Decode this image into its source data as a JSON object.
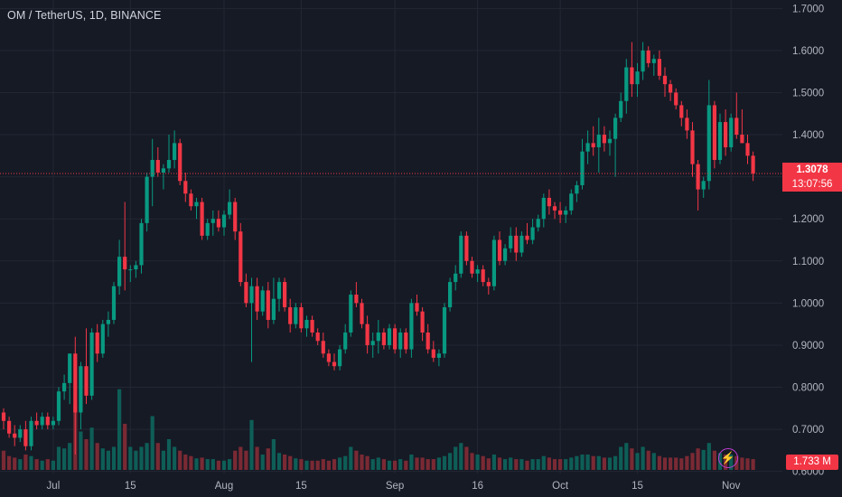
{
  "header": {
    "title": "OM / TetherUS, 1D, BINANCE"
  },
  "price": {
    "last": "1.3078",
    "countdown": "13:07:56"
  },
  "volume": {
    "last_label": "1.733 M"
  },
  "icons": {
    "flash": "lightning-bolt-icon"
  },
  "colors": {
    "background": "#161a25",
    "up": "#089981",
    "down": "#f23645",
    "grid": "#232734",
    "axis_text": "#b2b5be",
    "volume_up": "#0e5e57",
    "volume_down": "#7a2a34"
  },
  "chart_data": {
    "type": "candlestick",
    "symbol": "OM / TetherUS",
    "interval": "1D",
    "exchange": "BINANCE",
    "y_range": [
      0.58,
      1.72
    ],
    "y_ticks": [
      "1.7000",
      "1.6000",
      "1.5000",
      "1.4000",
      "1.3000",
      "1.2000",
      "1.1000",
      "1.0000",
      "0.9000",
      "0.8000",
      "0.7000",
      "0.6000"
    ],
    "x_ticks": [
      {
        "label": "Jul",
        "index": 9
      },
      {
        "label": "15",
        "index": 23
      },
      {
        "label": "Aug",
        "index": 40
      },
      {
        "label": "15",
        "index": 54
      },
      {
        "label": "Sep",
        "index": 71
      },
      {
        "label": "16",
        "index": 86
      },
      {
        "label": "Oct",
        "index": 101
      },
      {
        "label": "15",
        "index": 115
      },
      {
        "label": "Nov",
        "index": 132
      }
    ],
    "grid": true,
    "last_price": 1.3078,
    "candles": [
      [
        0.74,
        0.75,
        0.7,
        0.72,
        25
      ],
      [
        0.72,
        0.73,
        0.68,
        0.69,
        18
      ],
      [
        0.69,
        0.71,
        0.66,
        0.68,
        16
      ],
      [
        0.68,
        0.71,
        0.67,
        0.7,
        14
      ],
      [
        0.7,
        0.72,
        0.65,
        0.66,
        20
      ],
      [
        0.66,
        0.73,
        0.65,
        0.72,
        18
      ],
      [
        0.72,
        0.74,
        0.7,
        0.71,
        14
      ],
      [
        0.71,
        0.74,
        0.7,
        0.73,
        12
      ],
      [
        0.73,
        0.74,
        0.7,
        0.71,
        14
      ],
      [
        0.71,
        0.73,
        0.7,
        0.72,
        12
      ],
      [
        0.72,
        0.8,
        0.71,
        0.79,
        30
      ],
      [
        0.79,
        0.83,
        0.77,
        0.81,
        28
      ],
      [
        0.81,
        0.88,
        0.76,
        0.88,
        35
      ],
      [
        0.88,
        0.92,
        0.64,
        0.74,
        85
      ],
      [
        0.74,
        0.86,
        0.7,
        0.85,
        50
      ],
      [
        0.85,
        0.94,
        0.76,
        0.78,
        40
      ],
      [
        0.78,
        0.94,
        0.77,
        0.93,
        55
      ],
      [
        0.93,
        0.95,
        0.86,
        0.88,
        35
      ],
      [
        0.88,
        0.96,
        0.87,
        0.95,
        28
      ],
      [
        0.95,
        0.98,
        0.92,
        0.96,
        25
      ],
      [
        0.96,
        1.05,
        0.95,
        1.04,
        30
      ],
      [
        1.04,
        1.15,
        1.02,
        1.11,
        105
      ],
      [
        1.11,
        1.24,
        1.03,
        1.08,
        60
      ],
      [
        1.08,
        1.09,
        1.05,
        1.08,
        30
      ],
      [
        1.08,
        1.1,
        1.06,
        1.09,
        25
      ],
      [
        1.09,
        1.2,
        1.07,
        1.19,
        30
      ],
      [
        1.19,
        1.31,
        1.17,
        1.3,
        35
      ],
      [
        1.3,
        1.39,
        1.23,
        1.34,
        70
      ],
      [
        1.34,
        1.37,
        1.3,
        1.31,
        35
      ],
      [
        1.31,
        1.33,
        1.27,
        1.32,
        25
      ],
      [
        1.32,
        1.4,
        1.31,
        1.34,
        40
      ],
      [
        1.34,
        1.41,
        1.32,
        1.38,
        30
      ],
      [
        1.38,
        1.39,
        1.28,
        1.29,
        25
      ],
      [
        1.29,
        1.31,
        1.24,
        1.26,
        20
      ],
      [
        1.26,
        1.27,
        1.22,
        1.23,
        18
      ],
      [
        1.23,
        1.25,
        1.2,
        1.24,
        15
      ],
      [
        1.24,
        1.25,
        1.15,
        1.16,
        16
      ],
      [
        1.16,
        1.2,
        1.15,
        1.19,
        14
      ],
      [
        1.19,
        1.22,
        1.16,
        1.2,
        14
      ],
      [
        1.2,
        1.22,
        1.17,
        1.18,
        12
      ],
      [
        1.18,
        1.22,
        1.16,
        1.21,
        12
      ],
      [
        1.21,
        1.27,
        1.2,
        1.24,
        14
      ],
      [
        1.24,
        1.25,
        1.15,
        1.17,
        25
      ],
      [
        1.17,
        1.19,
        1.04,
        1.05,
        30
      ],
      [
        1.05,
        1.07,
        0.99,
        1.0,
        25
      ],
      [
        1.0,
        1.06,
        0.86,
        1.04,
        65
      ],
      [
        1.04,
        1.06,
        0.96,
        0.98,
        30
      ],
      [
        0.98,
        1.04,
        0.97,
        1.03,
        20
      ],
      [
        1.03,
        1.05,
        0.94,
        0.96,
        28
      ],
      [
        0.96,
        1.06,
        0.95,
        1.01,
        40
      ],
      [
        1.01,
        1.06,
        0.98,
        1.05,
        22
      ],
      [
        1.05,
        1.06,
        0.98,
        0.99,
        20
      ],
      [
        0.99,
        1.01,
        0.93,
        0.95,
        18
      ],
      [
        0.95,
        1.0,
        0.94,
        0.99,
        15
      ],
      [
        0.99,
        1.0,
        0.93,
        0.94,
        14
      ],
      [
        0.94,
        0.97,
        0.92,
        0.96,
        12
      ],
      [
        0.96,
        0.97,
        0.92,
        0.93,
        12
      ],
      [
        0.93,
        0.94,
        0.9,
        0.91,
        12
      ],
      [
        0.91,
        0.93,
        0.87,
        0.88,
        14
      ],
      [
        0.88,
        0.89,
        0.85,
        0.86,
        12
      ],
      [
        0.86,
        0.88,
        0.84,
        0.85,
        14
      ],
      [
        0.85,
        0.9,
        0.84,
        0.89,
        16
      ],
      [
        0.89,
        0.95,
        0.88,
        0.93,
        18
      ],
      [
        0.93,
        1.03,
        0.92,
        1.02,
        30
      ],
      [
        1.02,
        1.05,
        0.99,
        1.0,
        25
      ],
      [
        1.0,
        1.01,
        0.94,
        0.95,
        20
      ],
      [
        0.95,
        0.97,
        0.88,
        0.9,
        18
      ],
      [
        0.9,
        0.93,
        0.87,
        0.91,
        14
      ],
      [
        0.91,
        0.96,
        0.88,
        0.93,
        16
      ],
      [
        0.93,
        0.94,
        0.89,
        0.9,
        14
      ],
      [
        0.9,
        0.95,
        0.89,
        0.94,
        12
      ],
      [
        0.94,
        0.95,
        0.88,
        0.89,
        12
      ],
      [
        0.89,
        0.94,
        0.87,
        0.93,
        14
      ],
      [
        0.93,
        0.94,
        0.88,
        0.89,
        12
      ],
      [
        0.89,
        1.01,
        0.87,
        1.0,
        20
      ],
      [
        1.0,
        1.02,
        0.97,
        0.98,
        16
      ],
      [
        0.98,
        0.99,
        0.91,
        0.93,
        16
      ],
      [
        0.93,
        0.95,
        0.88,
        0.89,
        14
      ],
      [
        0.89,
        0.91,
        0.86,
        0.87,
        14
      ],
      [
        0.87,
        0.89,
        0.85,
        0.88,
        16
      ],
      [
        0.88,
        1.0,
        0.87,
        0.99,
        18
      ],
      [
        0.99,
        1.06,
        0.98,
        1.05,
        22
      ],
      [
        1.05,
        1.09,
        1.03,
        1.07,
        30
      ],
      [
        1.07,
        1.17,
        1.06,
        1.16,
        35
      ],
      [
        1.16,
        1.17,
        1.09,
        1.1,
        30
      ],
      [
        1.1,
        1.11,
        1.06,
        1.07,
        22
      ],
      [
        1.07,
        1.09,
        1.05,
        1.08,
        20
      ],
      [
        1.08,
        1.09,
        1.04,
        1.05,
        18
      ],
      [
        1.05,
        1.06,
        1.02,
        1.04,
        15
      ],
      [
        1.04,
        1.16,
        1.03,
        1.15,
        20
      ],
      [
        1.15,
        1.17,
        1.09,
        1.1,
        16
      ],
      [
        1.1,
        1.14,
        1.09,
        1.13,
        14
      ],
      [
        1.13,
        1.18,
        1.12,
        1.16,
        16
      ],
      [
        1.16,
        1.18,
        1.1,
        1.12,
        14
      ],
      [
        1.12,
        1.17,
        1.11,
        1.16,
        14
      ],
      [
        1.16,
        1.19,
        1.14,
        1.15,
        12
      ],
      [
        1.15,
        1.2,
        1.14,
        1.18,
        14
      ],
      [
        1.18,
        1.21,
        1.17,
        1.2,
        14
      ],
      [
        1.2,
        1.26,
        1.18,
        1.25,
        18
      ],
      [
        1.25,
        1.27,
        1.21,
        1.23,
        16
      ],
      [
        1.23,
        1.24,
        1.2,
        1.22,
        14
      ],
      [
        1.22,
        1.24,
        1.19,
        1.21,
        14
      ],
      [
        1.21,
        1.23,
        1.19,
        1.22,
        14
      ],
      [
        1.22,
        1.27,
        1.21,
        1.26,
        16
      ],
      [
        1.26,
        1.29,
        1.24,
        1.28,
        18
      ],
      [
        1.28,
        1.39,
        1.27,
        1.36,
        20
      ],
      [
        1.36,
        1.41,
        1.33,
        1.38,
        20
      ],
      [
        1.38,
        1.42,
        1.35,
        1.37,
        18
      ],
      [
        1.37,
        1.44,
        1.31,
        1.4,
        18
      ],
      [
        1.4,
        1.42,
        1.36,
        1.38,
        16
      ],
      [
        1.38,
        1.41,
        1.35,
        1.39,
        16
      ],
      [
        1.39,
        1.45,
        1.3,
        1.44,
        18
      ],
      [
        1.44,
        1.5,
        1.43,
        1.48,
        30
      ],
      [
        1.48,
        1.58,
        1.45,
        1.56,
        35
      ],
      [
        1.56,
        1.62,
        1.49,
        1.52,
        28
      ],
      [
        1.52,
        1.57,
        1.49,
        1.55,
        22
      ],
      [
        1.55,
        1.62,
        1.53,
        1.6,
        30
      ],
      [
        1.6,
        1.61,
        1.56,
        1.57,
        25
      ],
      [
        1.57,
        1.59,
        1.54,
        1.58,
        22
      ],
      [
        1.58,
        1.6,
        1.53,
        1.54,
        18
      ],
      [
        1.54,
        1.56,
        1.49,
        1.52,
        16
      ],
      [
        1.52,
        1.53,
        1.48,
        1.5,
        16
      ],
      [
        1.5,
        1.51,
        1.46,
        1.47,
        16
      ],
      [
        1.47,
        1.48,
        1.42,
        1.44,
        15
      ],
      [
        1.44,
        1.46,
        1.39,
        1.41,
        18
      ],
      [
        1.41,
        1.43,
        1.3,
        1.33,
        22
      ],
      [
        1.33,
        1.34,
        1.22,
        1.27,
        28
      ],
      [
        1.27,
        1.3,
        1.25,
        1.29,
        26
      ],
      [
        1.29,
        1.53,
        1.27,
        1.47,
        35
      ],
      [
        1.47,
        1.48,
        1.32,
        1.34,
        25
      ],
      [
        1.34,
        1.45,
        1.33,
        1.43,
        22
      ],
      [
        1.43,
        1.46,
        1.35,
        1.37,
        20
      ],
      [
        1.37,
        1.45,
        1.36,
        1.44,
        20
      ],
      [
        1.44,
        1.5,
        1.39,
        1.4,
        18
      ],
      [
        1.4,
        1.46,
        1.38,
        1.38,
        16
      ],
      [
        1.38,
        1.4,
        1.33,
        1.35,
        15
      ],
      [
        1.35,
        1.36,
        1.29,
        1.308,
        14
      ]
    ]
  }
}
